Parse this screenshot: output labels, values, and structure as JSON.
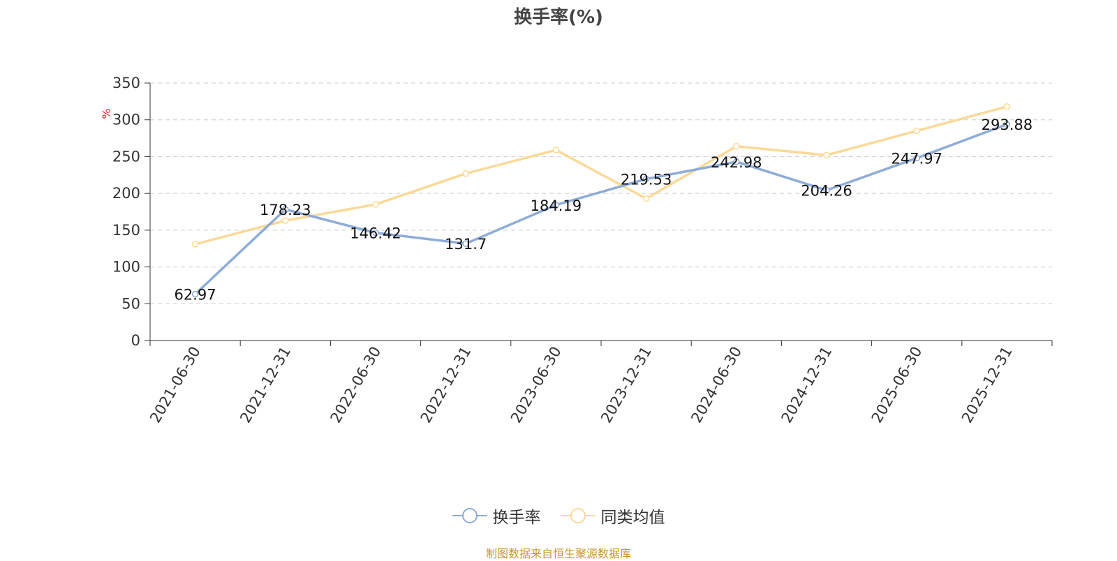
{
  "chart_data": {
    "type": "line",
    "title": "换手率(%)",
    "ylabel": "%",
    "xlabel": "",
    "categories": [
      "2021-06-30",
      "2021-12-31",
      "2022-06-30",
      "2022-12-31",
      "2023-06-30",
      "2023-12-31",
      "2024-06-30",
      "2024-12-31",
      "2025-06-30",
      "2025-12-31"
    ],
    "ylim": [
      0,
      350
    ],
    "yticks": [
      0,
      50,
      100,
      150,
      200,
      250,
      300,
      350
    ],
    "grid": true,
    "legend_position": "bottom",
    "series": [
      {
        "name": "换手率",
        "color": "#8eacd8",
        "show_labels": true,
        "values": [
          62.97,
          178.23,
          146.42,
          131.7,
          184.19,
          219.53,
          242.98,
          204.26,
          247.97,
          293.88
        ]
      },
      {
        "name": "同类均值",
        "color": "#fad998",
        "show_labels": false,
        "values": [
          131,
          163,
          185,
          227,
          259,
          193,
          264,
          252,
          285,
          318
        ]
      }
    ]
  },
  "footer": {
    "source": "制图数据来自恒生聚源数据库"
  },
  "colors": {
    "axis": "#333333",
    "grid": "#cccccc",
    "ylabel": "#e02020"
  }
}
